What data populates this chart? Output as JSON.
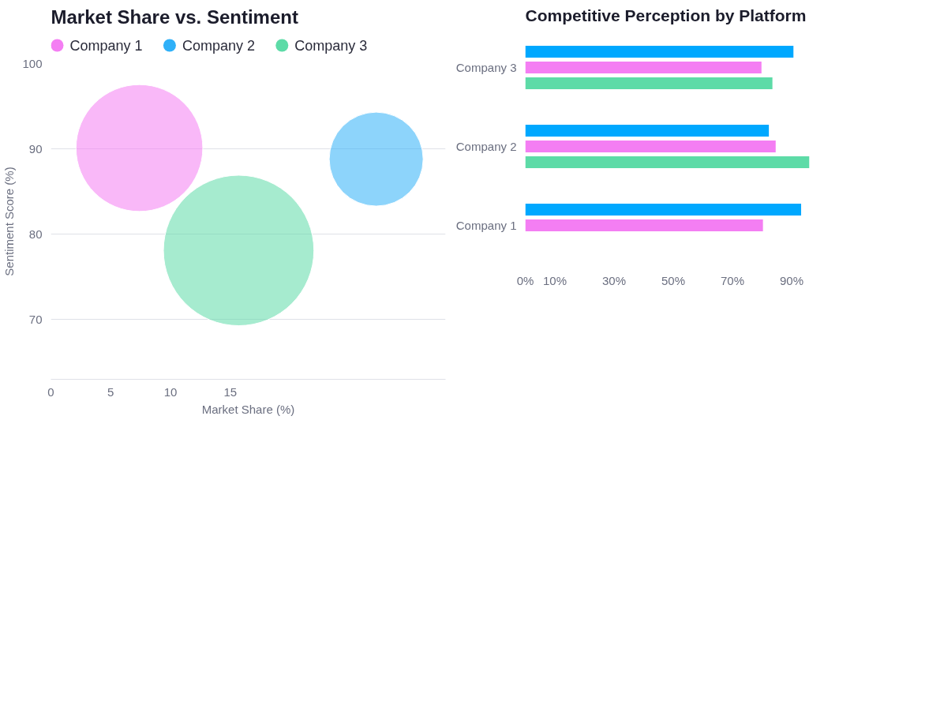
{
  "chart_data": [
    {
      "type": "bubble",
      "title": "Market Share vs. Sentiment",
      "xlabel": "Market Share (%)",
      "ylabel": "Sentiment Score (%)",
      "xlim": [
        0,
        33
      ],
      "xticks": [
        0,
        5,
        10,
        15
      ],
      "ylim": [
        63,
        100
      ],
      "yticks": [
        70,
        80,
        90,
        100
      ],
      "grid": "y",
      "legend": "top left",
      "series": [
        {
          "name": "Company 1",
          "color": "#f47ef3",
          "x": [
            7.4
          ],
          "values": [
            90.1
          ],
          "sizes": [
            0.71
          ]
        },
        {
          "name": "Company 2",
          "color": "#2fb0f8",
          "x": [
            27.2
          ],
          "values": [
            88.8
          ],
          "sizes": [
            0.39
          ]
        },
        {
          "name": "Company 3",
          "color": "#5ddba7",
          "x": [
            15.7
          ],
          "values": [
            78.1
          ],
          "sizes": [
            1
          ]
        }
      ]
    },
    {
      "type": "bar",
      "orientation": "horizontal",
      "title": "Competitive Perception by Platform",
      "categories": [
        "Company 3",
        "Company 2",
        "Company 1"
      ],
      "xlim": [
        0,
        96
      ],
      "xticks": [
        {
          "value": 0,
          "label": "0%"
        },
        {
          "value": 10,
          "label": "10%"
        },
        {
          "value": 30,
          "label": "30%"
        },
        {
          "value": 50,
          "label": "50%"
        },
        {
          "value": 70,
          "label": "70%"
        },
        {
          "value": 90,
          "label": "90%"
        }
      ],
      "grid": false,
      "series": [
        {
          "color": "#00a8ff",
          "values": [
            90.6,
            82.3,
            93.2
          ]
        },
        {
          "color": "#f47ef3",
          "values": [
            79.8,
            84.6,
            80.3
          ]
        },
        {
          "color": "#5ddba7",
          "values": [
            83.5,
            96,
            null
          ]
        }
      ]
    }
  ]
}
